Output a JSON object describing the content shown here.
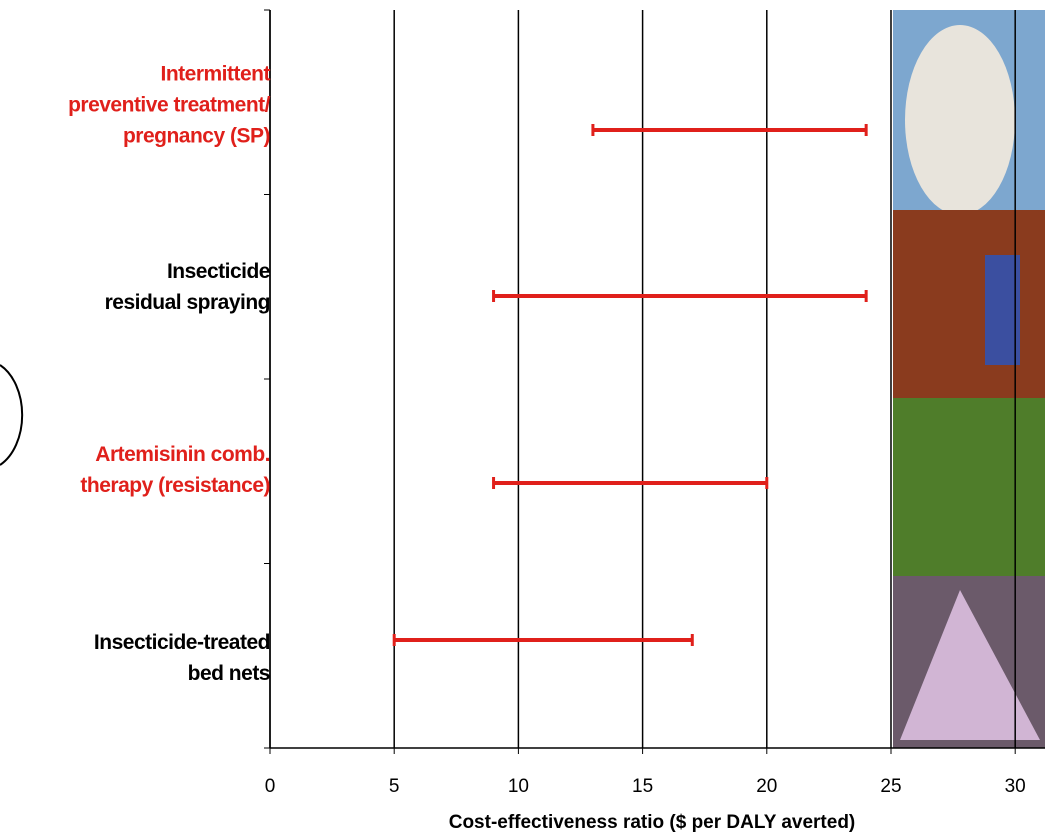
{
  "chart_data": {
    "type": "range",
    "x_label": "Cost-effectiveness ratio ($ per DALY averted)",
    "categories": [
      "Intermittent\npreventive treatment/\npregnancy (SP)",
      "Insecticide\nresidual spraying",
      "Artemisinin comb.\ntherapy (resistance)",
      "Insecticide-treated\nbed nets"
    ],
    "category_colors": [
      "#e0201b",
      "#000000",
      "#e0201b",
      "#000000"
    ],
    "low": [
      13,
      9,
      9,
      5
    ],
    "high": [
      24,
      24,
      20,
      17
    ],
    "color": "#e0201b",
    "xlim": [
      0,
      31.2
    ],
    "xticks": [
      0,
      5,
      10,
      15,
      20,
      25,
      30
    ],
    "grid": true
  }
}
